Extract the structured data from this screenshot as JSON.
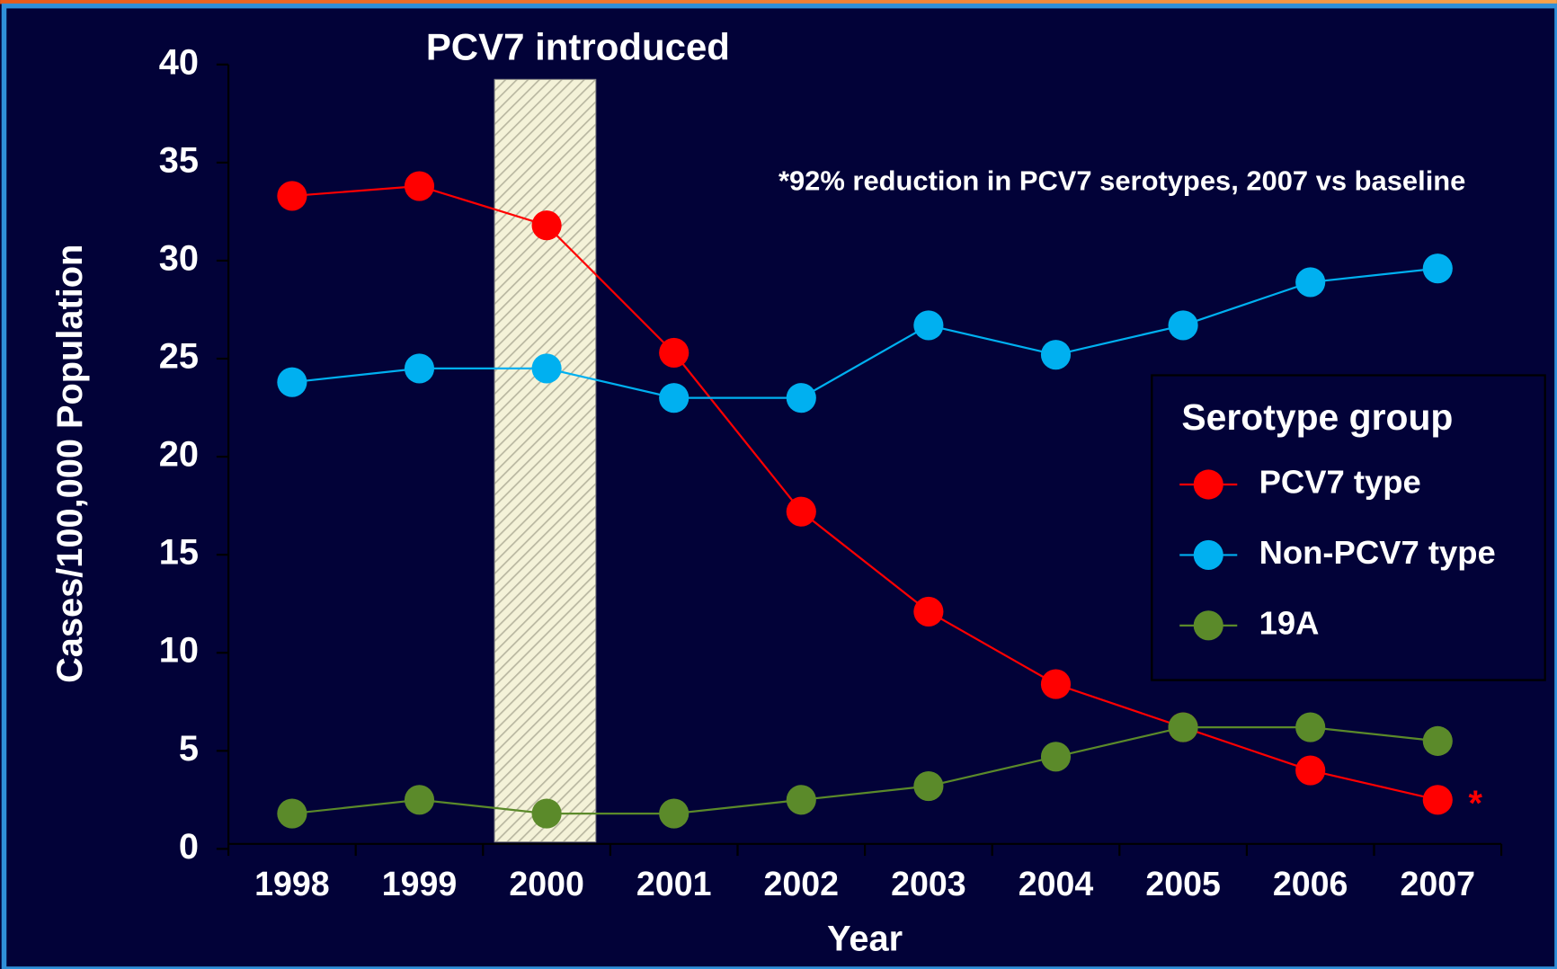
{
  "chart_data": {
    "type": "line",
    "y_label": "Cases/100,000 Population",
    "x_label": "Year",
    "categories": [
      "1998",
      "1999",
      "2000",
      "2001",
      "2002",
      "2003",
      "2004",
      "2005",
      "2006",
      "2007"
    ],
    "series": [
      {
        "name": "PCV7 type",
        "color": "#ff0000",
        "values": [
          33.3,
          33.8,
          31.8,
          25.3,
          17.2,
          12.1,
          8.4,
          6.2,
          4.0,
          2.5
        ]
      },
      {
        "name": "Non-PCV7 type",
        "color": "#00b0f0",
        "values": [
          23.8,
          24.5,
          24.5,
          23.0,
          23.0,
          26.7,
          25.2,
          26.7,
          28.9,
          29.6
        ]
      },
      {
        "name": "19A",
        "color": "#5b8a2a",
        "values": [
          1.8,
          2.5,
          1.8,
          1.8,
          2.5,
          3.2,
          4.7,
          6.2,
          6.2,
          5.5
        ]
      }
    ],
    "ylim": [
      0,
      40
    ],
    "yticks": [
      0,
      5,
      10,
      15,
      20,
      25,
      30,
      35,
      40
    ],
    "legend_title": "Serotype group",
    "legend": "right",
    "annotations": {
      "intro": "PCV7 introduced",
      "note": "*92% reduction in PCV7 serotypes, 2007 vs baseline",
      "star": "*"
    }
  }
}
